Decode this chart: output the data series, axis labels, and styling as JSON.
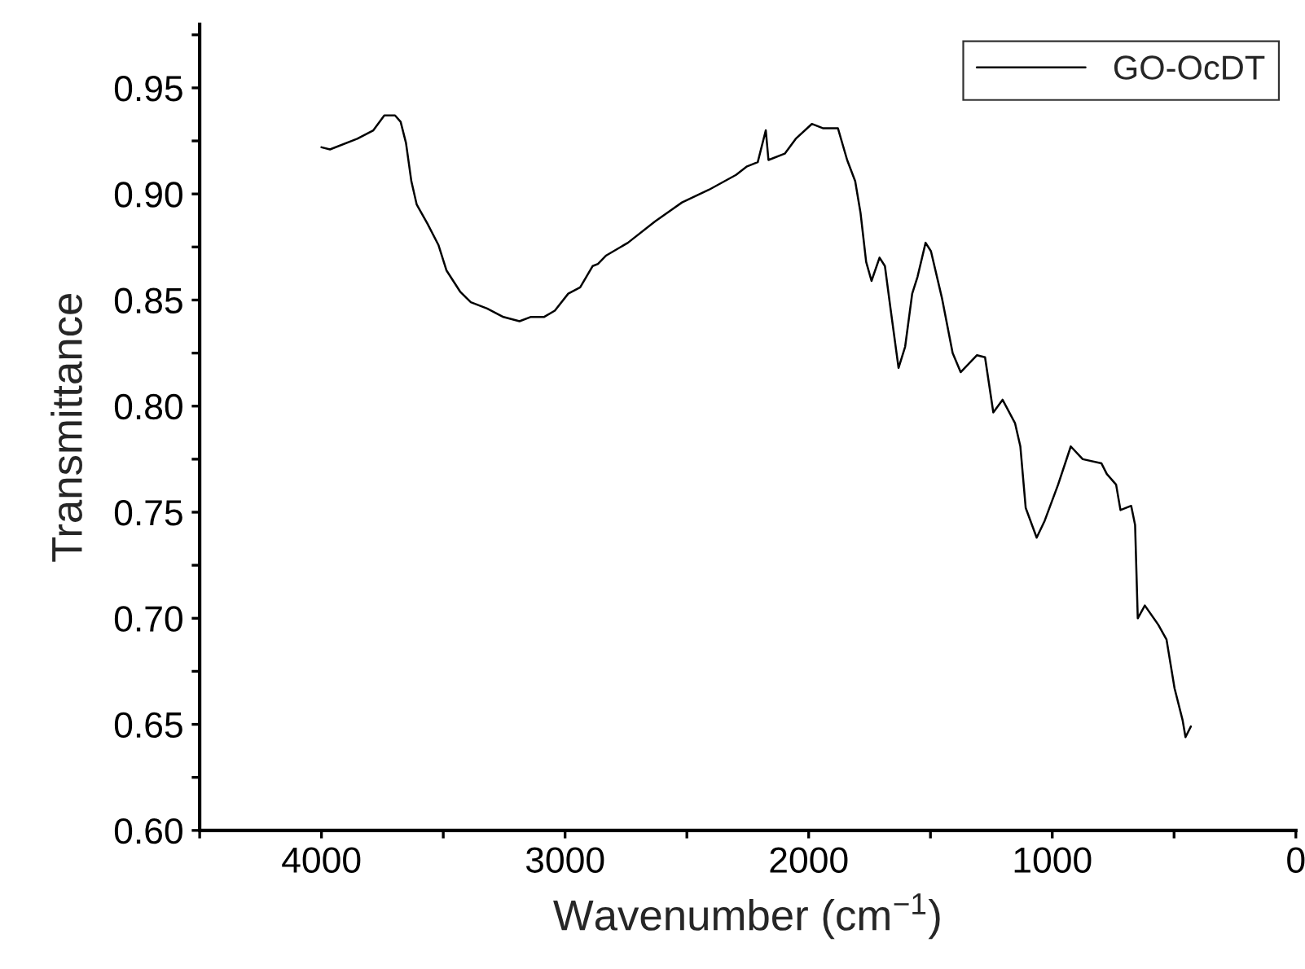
{
  "chart_data": {
    "type": "line",
    "xlabel": "Wavenumber (cm$^{−1}$)",
    "ylabel": "Transmittance",
    "xlim": [
      4500,
      0
    ],
    "ylim": [
      0.6,
      0.98
    ],
    "xticks": [
      {
        "value": 4500,
        "label": null
      },
      4000,
      {
        "value": 3500,
        "label": null
      },
      3000,
      {
        "value": 2500,
        "label": null
      },
      2000,
      {
        "value": 1500,
        "label": null
      },
      1000,
      {
        "value": 500,
        "label": null
      },
      0
    ],
    "yticks": [
      {
        "value": 0.6,
        "label": "0.60"
      },
      {
        "value": 0.625,
        "label": null
      },
      {
        "value": 0.65,
        "label": "0.65"
      },
      {
        "value": 0.675,
        "label": null
      },
      {
        "value": 0.7,
        "label": "0.70"
      },
      {
        "value": 0.725,
        "label": null
      },
      {
        "value": 0.75,
        "label": "0.75"
      },
      {
        "value": 0.775,
        "label": null
      },
      {
        "value": 0.8,
        "label": "0.80"
      },
      {
        "value": 0.825,
        "label": null
      },
      {
        "value": 0.85,
        "label": "0.85"
      },
      {
        "value": 0.875,
        "label": null
      },
      {
        "value": 0.9,
        "label": "0.90"
      },
      {
        "value": 0.925,
        "label": null
      },
      {
        "value": 0.95,
        "label": "0.95"
      },
      {
        "value": 0.975,
        "label": null
      }
    ],
    "legend": "top right",
    "grid": false,
    "marker": "none",
    "line_style": "solid",
    "x": [
      4000,
      3965,
      3853,
      3787,
      3742,
      3698,
      3675,
      3653,
      3631,
      3609,
      3565,
      3520,
      3487,
      3431,
      3387,
      3320,
      3253,
      3187,
      3142,
      3087,
      3042,
      2987,
      2938,
      2887,
      2865,
      2831,
      2742,
      2631,
      2520,
      2409,
      2298,
      2253,
      2209,
      2176,
      2165,
      2098,
      2053,
      1987,
      1942,
      1880,
      1842,
      1809,
      1787,
      1764,
      1742,
      1709,
      1687,
      1664,
      1631,
      1604,
      1575,
      1553,
      1520,
      1498,
      1453,
      1409,
      1376,
      1309,
      1276,
      1242,
      1204,
      1153,
      1131,
      1109,
      1064,
      1031,
      976,
      924,
      875,
      798,
      776,
      738,
      720,
      676,
      660,
      649,
      620,
      565,
      531,
      498,
      465,
      453,
      431
    ],
    "series": [
      {
        "name": "GO-OcDT",
        "color": "#000000",
        "values": [
          0.922,
          0.921,
          0.926,
          0.93,
          0.937,
          0.937,
          0.934,
          0.924,
          0.906,
          0.895,
          0.886,
          0.876,
          0.864,
          0.854,
          0.849,
          0.846,
          0.842,
          0.84,
          0.842,
          0.842,
          0.845,
          0.853,
          0.856,
          0.866,
          0.867,
          0.871,
          0.877,
          0.887,
          0.896,
          0.902,
          0.909,
          0.913,
          0.915,
          0.93,
          0.916,
          0.919,
          0.926,
          0.933,
          0.931,
          0.931,
          0.916,
          0.906,
          0.891,
          0.868,
          0.859,
          0.87,
          0.866,
          0.846,
          0.818,
          0.828,
          0.853,
          0.861,
          0.877,
          0.873,
          0.851,
          0.825,
          0.816,
          0.824,
          0.823,
          0.797,
          0.803,
          0.792,
          0.781,
          0.752,
          0.738,
          0.746,
          0.763,
          0.781,
          0.775,
          0.773,
          0.768,
          0.763,
          0.751,
          0.753,
          0.744,
          0.7,
          0.706,
          0.697,
          0.69,
          0.667,
          0.652,
          0.644,
          0.649
        ]
      }
    ]
  }
}
